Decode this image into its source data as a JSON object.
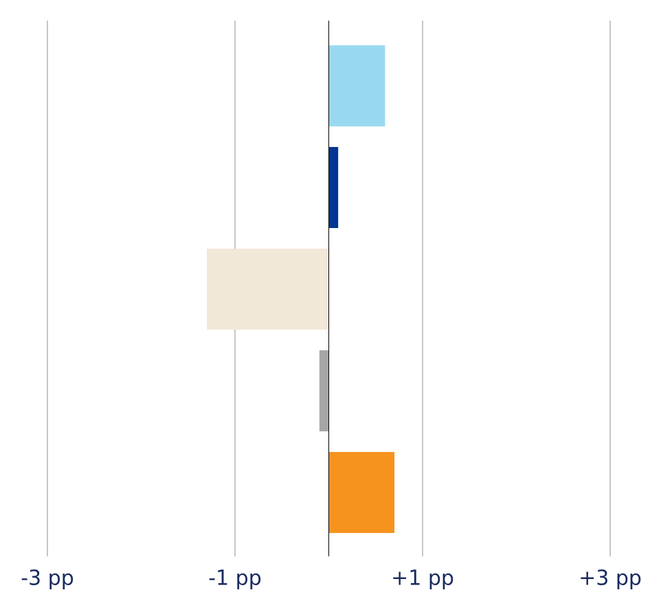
{
  "chart_data": {
    "type": "hbar",
    "categories": [
      null,
      null,
      null,
      null,
      null
    ],
    "values": [
      0.6,
      0.1,
      -1.3,
      -0.1,
      0.7
    ],
    "colors": [
      "#99d9f0",
      "#003591",
      "#f2e8d8",
      "#a6a6a6",
      "#f6931f"
    ],
    "xlim": [
      -3,
      3
    ],
    "xticks": [
      {
        "value": -3,
        "label": "-3 pp"
      },
      {
        "value": -1,
        "label": "-1 pp"
      },
      {
        "value": 1,
        "label": "+1 pp"
      },
      {
        "value": 3,
        "label": "+3 pp"
      }
    ],
    "grid": true
  }
}
